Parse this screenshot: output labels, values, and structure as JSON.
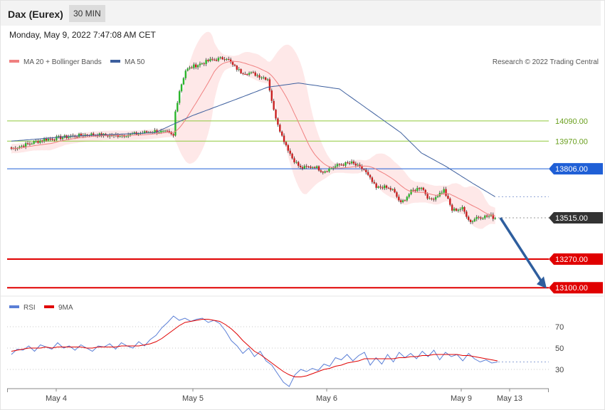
{
  "header": {
    "title": "Dax (Eurex)",
    "timeframe": "30 MIN"
  },
  "timestamp": "Monday, May 9, 2022 7:47:08 AM CET",
  "legend": {
    "ma20_label": "MA 20 + Bollinger Bands",
    "ma50_label": "MA 50",
    "credit": "Research © 2022 Trading Central",
    "rsi_label": "RSI",
    "rsi_ma_label": "9MA"
  },
  "colors": {
    "up": "#2bb52b",
    "down": "#c81e1e",
    "ma20": "#f08080",
    "band": "#fde0e0",
    "ma50": "#3d5f9e",
    "resistance_green": "#8fc93a",
    "pivot": "#1f5fd6",
    "support": "#e00000",
    "arrow": "#2e5e9e",
    "rsi": "#5b7fd6",
    "rsi_ma": "#e00000"
  },
  "chart_data": [
    {
      "type": "candlestick",
      "title": "Dax (Eurex)",
      "timeframe": "30 MIN",
      "x_ticks": [
        "May 4",
        "May 5",
        "May 6",
        "May 9",
        "May 13"
      ],
      "ylim": [
        13050,
        14650
      ],
      "levels": [
        {
          "value": 14090,
          "label": "14090.00",
          "style": "resistance"
        },
        {
          "value": 13970,
          "label": "13970.00",
          "style": "resistance"
        },
        {
          "value": 13806,
          "label": "13806.00",
          "style": "pivot"
        },
        {
          "value": 13515,
          "label": "13515.00",
          "style": "last"
        },
        {
          "value": 13270,
          "label": "13270.00",
          "style": "support"
        },
        {
          "value": 13100,
          "label": "13100.00",
          "style": "support"
        }
      ],
      "price_path": [
        [
          0,
          13925
        ],
        [
          16,
          13980
        ],
        [
          38,
          14010
        ],
        [
          50,
          14002
        ],
        [
          60,
          14012
        ],
        [
          70,
          14030
        ],
        [
          76,
          14020
        ],
        [
          79,
          14000
        ],
        [
          80,
          14145
        ],
        [
          82,
          14270
        ],
        [
          85,
          14390
        ],
        [
          89,
          14415
        ],
        [
          97,
          14450
        ],
        [
          105,
          14465
        ],
        [
          108,
          14420
        ],
        [
          112,
          14380
        ],
        [
          118,
          14370
        ],
        [
          125,
          14340
        ],
        [
          128,
          14150
        ],
        [
          132,
          14000
        ],
        [
          137,
          13870
        ],
        [
          141,
          13810
        ],
        [
          148,
          13820
        ],
        [
          152,
          13790
        ],
        [
          160,
          13830
        ],
        [
          166,
          13840
        ],
        [
          172,
          13800
        ],
        [
          178,
          13690
        ],
        [
          181,
          13700
        ],
        [
          186,
          13680
        ],
        [
          190,
          13600
        ],
        [
          195,
          13670
        ],
        [
          200,
          13700
        ],
        [
          204,
          13620
        ],
        [
          207,
          13640
        ],
        [
          211,
          13680
        ],
        [
          215,
          13560
        ],
        [
          220,
          13570
        ],
        [
          224,
          13490
        ],
        [
          227,
          13520
        ],
        [
          234,
          13525
        ],
        [
          236,
          13510
        ]
      ],
      "ma50_path": [
        [
          0,
          13970
        ],
        [
          30,
          14000
        ],
        [
          70,
          14020
        ],
        [
          88,
          14120
        ],
        [
          110,
          14220
        ],
        [
          125,
          14290
        ],
        [
          140,
          14315
        ],
        [
          160,
          14280
        ],
        [
          175,
          14150
        ],
        [
          190,
          14020
        ],
        [
          200,
          13900
        ],
        [
          212,
          13820
        ],
        [
          225,
          13720
        ],
        [
          236,
          13640
        ]
      ],
      "projection": {
        "from": 13515,
        "to": 13100
      }
    },
    {
      "type": "line",
      "title": "RSI",
      "ylim": [
        0,
        100
      ],
      "y_ticks": [
        70,
        50,
        30
      ],
      "series": [
        {
          "name": "RSI",
          "values": [
            44,
            49,
            48,
            52,
            47,
            53,
            51,
            49,
            55,
            50,
            52,
            48,
            53,
            50,
            47,
            52,
            51,
            54,
            49,
            55,
            52,
            50,
            56,
            52,
            58,
            62,
            69,
            74,
            80,
            76,
            78,
            75,
            77,
            78,
            74,
            76,
            73,
            66,
            57,
            52,
            45,
            50,
            42,
            47,
            38,
            34,
            26,
            18,
            14,
            25,
            30,
            28,
            31,
            29,
            35,
            33,
            41,
            39,
            44,
            38,
            43,
            46,
            34,
            41,
            35,
            44,
            37,
            46,
            41,
            45,
            40,
            47,
            42,
            48,
            39,
            46,
            42,
            44,
            38,
            45,
            40,
            37,
            39,
            36,
            37
          ]
        },
        {
          "name": "9MA",
          "values": [
            47,
            48,
            49,
            50,
            50,
            50,
            51,
            50,
            51,
            51,
            51,
            51,
            51,
            50,
            50,
            51,
            51,
            51,
            51,
            52,
            52,
            52,
            52,
            53,
            54,
            56,
            59,
            63,
            67,
            71,
            74,
            75,
            76,
            77,
            77,
            76,
            75,
            72,
            68,
            63,
            57,
            52,
            47,
            44,
            40,
            36,
            32,
            28,
            25,
            23,
            23,
            24,
            26,
            28,
            30,
            31,
            33,
            34,
            36,
            37,
            38,
            40,
            40,
            40,
            40,
            40,
            40,
            41,
            41,
            42,
            42,
            43,
            43,
            44,
            44,
            44,
            44,
            44,
            43,
            43,
            42,
            41,
            40,
            39,
            38
          ]
        }
      ]
    }
  ]
}
